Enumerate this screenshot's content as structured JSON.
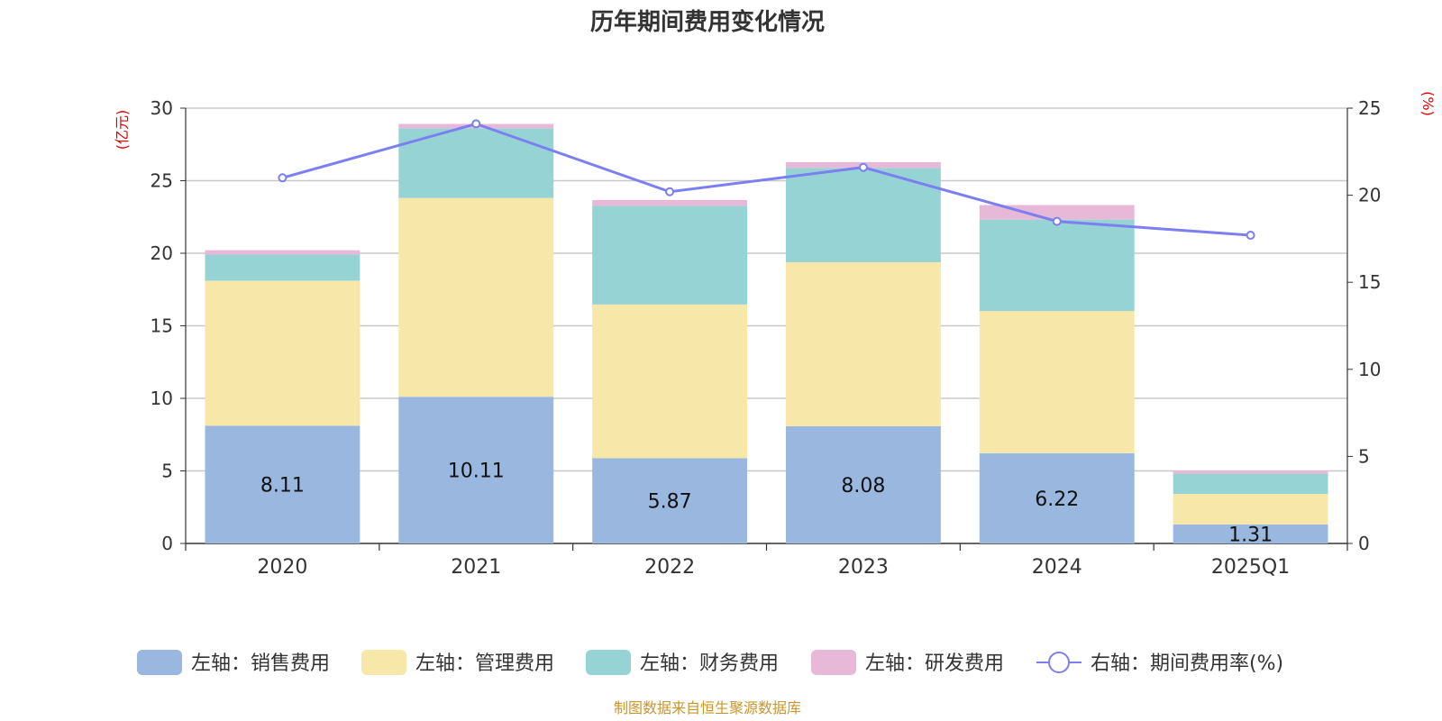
{
  "chart_data": {
    "type": "bar",
    "title": "历年期间费用变化情况",
    "categories": [
      "2020",
      "2021",
      "2022",
      "2023",
      "2024",
      "2025Q1"
    ],
    "left_axis": {
      "unit_label": "(亿元)",
      "ylim": [
        0,
        30
      ],
      "ticks": [
        "0",
        "5",
        "10",
        "15",
        "20",
        "25",
        "30"
      ]
    },
    "right_axis": {
      "unit_label": "(%)",
      "ylim": [
        0,
        25
      ],
      "ticks": [
        "0",
        "5",
        "10",
        "15",
        "20",
        "25"
      ]
    },
    "series": [
      {
        "name": "左轴：销售费用",
        "type": "bar",
        "axis": "left",
        "color": "#9ab7e0",
        "values": [
          8.11,
          10.11,
          5.87,
          8.08,
          6.22,
          1.31
        ],
        "labels": [
          "8.11",
          "10.11",
          "5.87",
          "8.08",
          "6.22",
          "1.31"
        ]
      },
      {
        "name": "左轴：管理费用",
        "type": "bar",
        "axis": "left",
        "color": "#f7e7a8",
        "values": [
          10.0,
          13.7,
          10.6,
          11.3,
          9.8,
          2.1
        ]
      },
      {
        "name": "左轴：财务费用",
        "type": "bar",
        "axis": "left",
        "color": "#96d3d4",
        "values": [
          1.8,
          4.8,
          6.8,
          6.5,
          6.3,
          1.4
        ]
      },
      {
        "name": "左轴：研发费用",
        "type": "bar",
        "axis": "left",
        "color": "#e8b8d8",
        "values": [
          0.3,
          0.3,
          0.4,
          0.4,
          1.0,
          0.2
        ]
      },
      {
        "name": "右轴：期间费用率(%)",
        "type": "line",
        "axis": "right",
        "color": "#7b7fef",
        "values": [
          21.0,
          24.1,
          20.2,
          21.6,
          18.5,
          17.7
        ]
      }
    ],
    "grid": true,
    "legend_position": "bottom"
  },
  "source": "制图数据来自恒生聚源数据库"
}
